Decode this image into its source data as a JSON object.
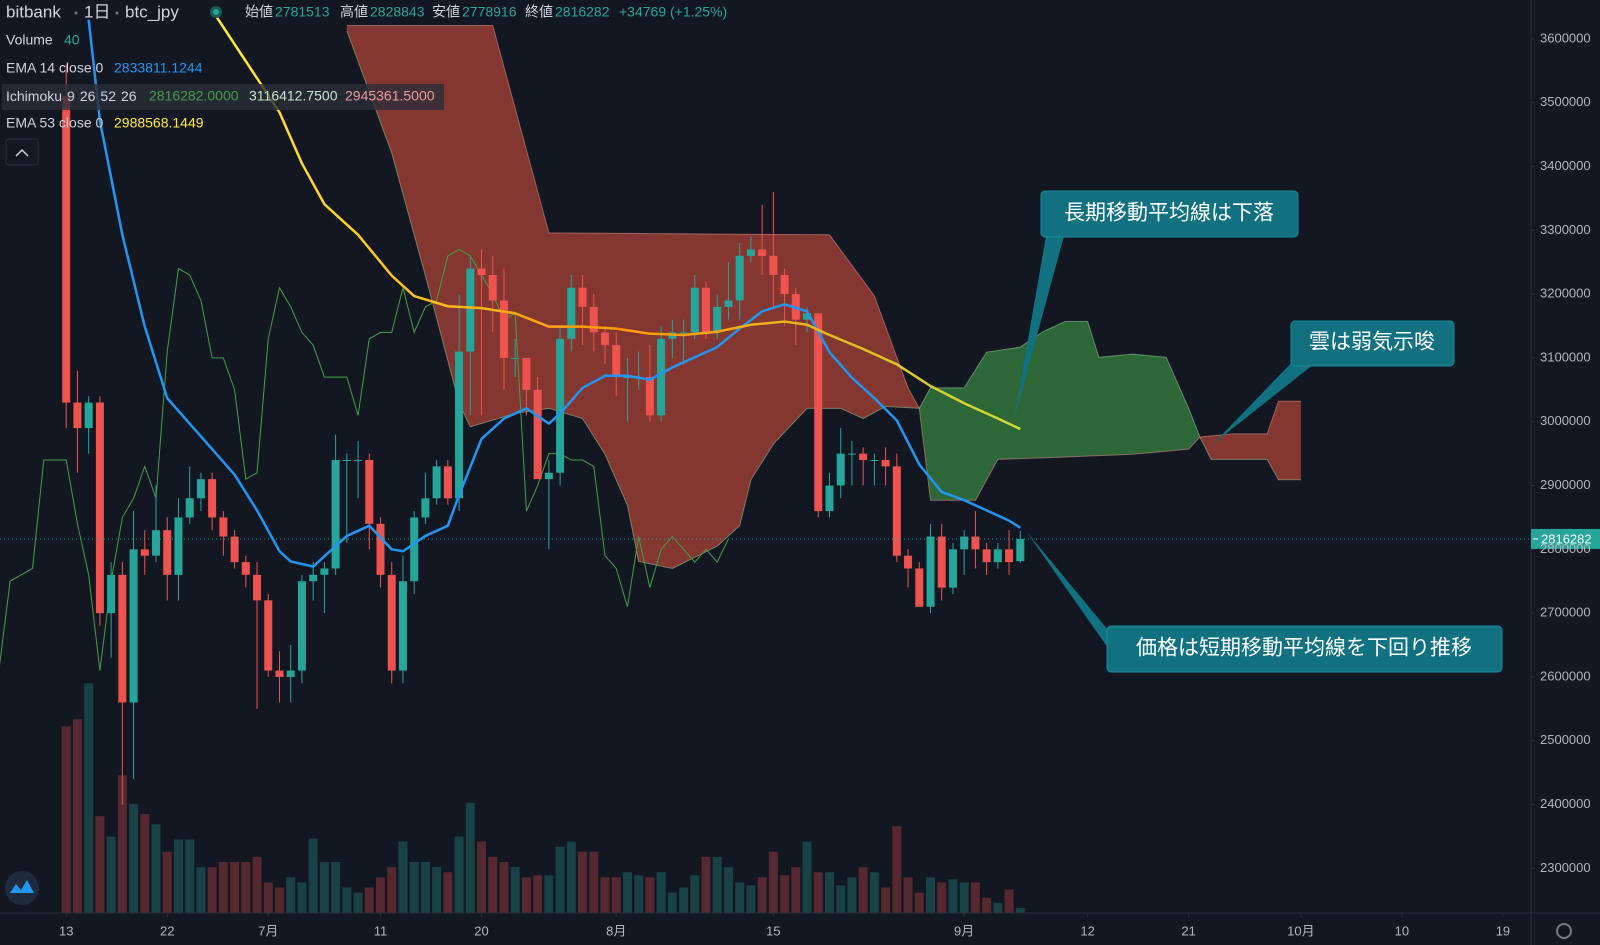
{
  "chart_data": {
    "type": "candlestick",
    "exchange": "bitbank",
    "interval": "1日",
    "symbol": "btc_jpy",
    "ohlc_labels": [
      "始値",
      "高値",
      "安値",
      "終値"
    ],
    "change_label": "+34769 (+1.25%)",
    "up_color": "#26a69a",
    "down_color": "#ef5350",
    "x": [
      0,
      1,
      2,
      3,
      4,
      5,
      6,
      7,
      8,
      9,
      10,
      11,
      12,
      13,
      14,
      15,
      16,
      17,
      18,
      19,
      20,
      21,
      22,
      23,
      24,
      25,
      26,
      27,
      28,
      29,
      30,
      31,
      32,
      33,
      34,
      35,
      36,
      37,
      38,
      39,
      40,
      41,
      42,
      43,
      44,
      45,
      46,
      47,
      48,
      49,
      50,
      51,
      52,
      53,
      54,
      55,
      56,
      57,
      58,
      59,
      60,
      61,
      62,
      63,
      64,
      65,
      66,
      67,
      68,
      69,
      70,
      71,
      72,
      73,
      74,
      75,
      76,
      77,
      78,
      79,
      80,
      81,
      82,
      83,
      84,
      85
    ],
    "open": [
      3510000,
      3030000,
      2990000,
      3030000,
      2700000,
      2760000,
      2560000,
      2800000,
      2790000,
      2830000,
      2760000,
      2850000,
      2880000,
      2910000,
      2850000,
      2820000,
      2780000,
      2760000,
      2720000,
      2610000,
      2600000,
      2610000,
      2750000,
      2760000,
      2770000,
      2940000,
      2940000,
      2940000,
      2840000,
      2760000,
      2610000,
      2750000,
      2850000,
      2880000,
      2930000,
      2880000,
      3110000,
      3240000,
      3230000,
      3190000,
      3100000,
      3100000,
      3050000,
      2910000,
      2920000,
      3130000,
      3210000,
      3180000,
      3140000,
      3120000,
      3070000,
      3070000,
      3070000,
      3010000,
      3130000,
      3140000,
      3140000,
      3210000,
      3140000,
      3180000,
      3190000,
      3260000,
      3270000,
      3260000,
      3230000,
      3200000,
      3160000,
      3170000,
      2860000,
      2900000,
      2950000,
      2950000,
      2940000,
      2940000,
      2930000,
      2790000,
      2770000,
      2710000,
      2820000,
      2740000,
      2800000,
      2820000,
      2800000,
      2780000,
      2800000,
      2781513
    ],
    "high": [
      3560000,
      3080000,
      3040000,
      3040000,
      2780000,
      2780000,
      2860000,
      2830000,
      2900000,
      2850000,
      2880000,
      2930000,
      2920000,
      2920000,
      2860000,
      2830000,
      2790000,
      2780000,
      2730000,
      2640000,
      2650000,
      2760000,
      2780000,
      2780000,
      2980000,
      2950000,
      2970000,
      2950000,
      2850000,
      2780000,
      2790000,
      2860000,
      2920000,
      2940000,
      2940000,
      3200000,
      3260000,
      3270000,
      3260000,
      3240000,
      3130000,
      3100000,
      3070000,
      2940000,
      3150000,
      3230000,
      3230000,
      3200000,
      3150000,
      3140000,
      3100000,
      3110000,
      3120000,
      3150000,
      3160000,
      3160000,
      3230000,
      3220000,
      3200000,
      3250000,
      3280000,
      3290000,
      3340000,
      3360000,
      3240000,
      3210000,
      3180000,
      3170000,
      2920000,
      2990000,
      2970000,
      2960000,
      2950000,
      2960000,
      2950000,
      2800000,
      2780000,
      2840000,
      2840000,
      2810000,
      2830000,
      2860000,
      2810000,
      2810000,
      2830000,
      2828843
    ],
    "low": [
      2990000,
      2920000,
      2950000,
      2680000,
      2630000,
      2400000,
      2440000,
      2760000,
      2780000,
      2720000,
      2720000,
      2840000,
      2860000,
      2830000,
      2790000,
      2770000,
      2740000,
      2550000,
      2600000,
      2560000,
      2560000,
      2590000,
      2720000,
      2700000,
      2760000,
      2810000,
      2880000,
      2800000,
      2740000,
      2590000,
      2590000,
      2730000,
      2840000,
      2870000,
      2870000,
      2860000,
      3010000,
      3010000,
      3140000,
      3050000,
      3070000,
      3010000,
      2910000,
      2800000,
      2900000,
      3110000,
      3120000,
      3110000,
      3090000,
      3040000,
      3000000,
      3050000,
      3000000,
      3000000,
      3100000,
      3090000,
      3130000,
      3130000,
      3130000,
      3160000,
      3160000,
      3250000,
      3230000,
      3180000,
      3150000,
      3120000,
      3140000,
      2850000,
      2850000,
      2880000,
      2900000,
      2900000,
      2900000,
      2900000,
      2780000,
      2740000,
      2710000,
      2700000,
      2720000,
      2730000,
      2760000,
      2770000,
      2760000,
      2770000,
      2760000,
      2778916
    ],
    "close": [
      3030000,
      2990000,
      3030000,
      2700000,
      2760000,
      2560000,
      2800000,
      2790000,
      2830000,
      2760000,
      2850000,
      2880000,
      2910000,
      2850000,
      2820000,
      2780000,
      2760000,
      2720000,
      2610000,
      2600000,
      2610000,
      2750000,
      2760000,
      2770000,
      2940000,
      2940000,
      2940000,
      2840000,
      2760000,
      2610000,
      2750000,
      2850000,
      2880000,
      2930000,
      2880000,
      3110000,
      3240000,
      3230000,
      3190000,
      3100000,
      3100000,
      3050000,
      2910000,
      2920000,
      3130000,
      3210000,
      3180000,
      3140000,
      3120000,
      3070000,
      3070000,
      3070000,
      3010000,
      3130000,
      3140000,
      3140000,
      3210000,
      3140000,
      3180000,
      3190000,
      3260000,
      3270000,
      3260000,
      3230000,
      3200000,
      3160000,
      3170000,
      2860000,
      2900000,
      2950000,
      2950000,
      2940000,
      2940000,
      2930000,
      2790000,
      2770000,
      2710000,
      2820000,
      2740000,
      2800000,
      2820000,
      2800000,
      2780000,
      2800000,
      2780000,
      2816282
    ],
    "volume": {
      "name": "Volume",
      "ylim": [
        0,
        7160
      ],
      "opacity": 0.3,
      "values": [
        1464,
        1520,
        1800,
        760,
        600,
        1080,
        856,
        776,
        696,
        480,
        576,
        576,
        360,
        360,
        400,
        400,
        400,
        440,
        240,
        200,
        280,
        240,
        584,
        400,
        400,
        200,
        160,
        200,
        280,
        360,
        560,
        400,
        400,
        360,
        320,
        600,
        864,
        560,
        440,
        400,
        360,
        280,
        296,
        296,
        520,
        560,
        480,
        480,
        280,
        280,
        320,
        296,
        280,
        320,
        160,
        200,
        296,
        440,
        440,
        360,
        240,
        216,
        280,
        480,
        296,
        360,
        560,
        320,
        320,
        216,
        280,
        360,
        320,
        200,
        680,
        280,
        160,
        280,
        240,
        264,
        240,
        240,
        120,
        80,
        184,
        40
      ]
    },
    "ema": [
      {
        "name": "EMA 14 close 0",
        "color": "#2196f3",
        "x": [
          2,
          3,
          5,
          7,
          9,
          11,
          13,
          15,
          17,
          19,
          20,
          22,
          23,
          25,
          27,
          29,
          30,
          32,
          34,
          35,
          37,
          39,
          41,
          43,
          44,
          46,
          48,
          50,
          52,
          54,
          56,
          58,
          60,
          62,
          64,
          66,
          68,
          70,
          72,
          74,
          76,
          78,
          80,
          82,
          84,
          85
        ],
        "values": [
          3630000,
          3472000,
          3293000,
          3149000,
          3037000,
          2997000,
          2957000,
          2917000,
          2861000,
          2797000,
          2781000,
          2773000,
          2789000,
          2821000,
          2837000,
          2800000,
          2797000,
          2821000,
          2837000,
          2885000,
          2973000,
          3005000,
          3021000,
          2997000,
          3013000,
          3053000,
          3072000,
          3072000,
          3066000,
          3085000,
          3101000,
          3117000,
          3146000,
          3173000,
          3184000,
          3173000,
          3109000,
          3069000,
          3037000,
          3002000,
          2933000,
          2890000,
          2877000,
          2861000,
          2845000,
          2833811.1244
        ]
      },
      {
        "name": "EMA 53 close 0",
        "color": "#ffeb3b",
        "gradient": [
          "#ffeb3b",
          "#ff9800",
          "#cddc39"
        ],
        "x": [
          13,
          16,
          19,
          21,
          23,
          26,
          29,
          31,
          34,
          37,
          40,
          43,
          46,
          49,
          52,
          55,
          58,
          61,
          64,
          66,
          68,
          71,
          74,
          77,
          80,
          83,
          85
        ],
        "values": [
          3645000,
          3565000,
          3485000,
          3405000,
          3341000,
          3293000,
          3229000,
          3197000,
          3181000,
          3178000,
          3170000,
          3149000,
          3149000,
          3146000,
          3138000,
          3136000,
          3141000,
          3152000,
          3157000,
          3152000,
          3136000,
          3114000,
          3090000,
          3056000,
          3029000,
          3005000,
          2988568.1449
        ]
      }
    ],
    "ichimoku": {
      "name": "Ichimoku",
      "params": [
        9,
        26,
        52,
        26
      ],
      "legend_values": [
        "2816282.0000",
        "3116412.7500",
        "2945361.5000"
      ],
      "lagging_color": "#43a047",
      "bull_fill": "#2e6b3a",
      "bear_fill": "#8a3832",
      "span_a": {
        "color": "#a5d6a7",
        "x": [
          25,
          29,
          32,
          35,
          36,
          40,
          43,
          46,
          48,
          50,
          51,
          54,
          58,
          60,
          61,
          63,
          66,
          69,
          71,
          73,
          76,
          77,
          80,
          82,
          85,
          87,
          89,
          91,
          92,
          95,
          98,
          100,
          101,
          102,
          107,
          108,
          110
        ],
        "values": [
          3613000,
          3421000,
          3229000,
          3029000,
          2992000,
          3013000,
          3021000,
          3005000,
          2949000,
          2869000,
          2781000,
          2770000,
          2805000,
          2837000,
          2909000,
          2965000,
          3021000,
          3021000,
          3005000,
          3024000,
          3021000,
          3053000,
          3053000,
          3109000,
          3117000,
          3141000,
          3157000,
          3157000,
          3101000,
          3106000,
          3101000,
          3021000,
          2976000,
          2941000,
          2941000,
          2909000,
          2909000
        ]
      },
      "span_b": {
        "color": "#ef9a9a",
        "x": [
          25,
          38,
          43,
          68,
          72,
          75,
          76,
          77,
          81,
          83,
          88,
          95,
          100,
          101,
          104,
          107,
          108,
          110
        ],
        "values": [
          3621000,
          3621000,
          3296000,
          3293000,
          3197000,
          3053000,
          3021000,
          2877000,
          2877000,
          2941000,
          2944000,
          2949000,
          2957000,
          2976000,
          2981000,
          2981000,
          3032000,
          3032000
        ]
      }
    },
    "xlim": [
      -5.9,
      130.5
    ],
    "xticks": [
      {
        "value": 0,
        "label": "13"
      },
      {
        "value": 9,
        "label": "22"
      },
      {
        "value": 18,
        "label": "7月"
      },
      {
        "value": 28,
        "label": "11"
      },
      {
        "value": 37,
        "label": "20"
      },
      {
        "value": 49,
        "label": "8月"
      },
      {
        "value": 63,
        "label": "15"
      },
      {
        "value": 80,
        "label": "9月"
      },
      {
        "value": 91,
        "label": "12"
      },
      {
        "value": 100,
        "label": "21"
      },
      {
        "value": 110,
        "label": "10月"
      },
      {
        "value": 119,
        "label": "10"
      },
      {
        "value": 128,
        "label": "19"
      }
    ],
    "ylim": [
      2230000,
      3661000
    ],
    "yticks": [
      2300000,
      2400000,
      2500000,
      2600000,
      2700000,
      2800000,
      2900000,
      3000000,
      3100000,
      3200000,
      3300000,
      3400000,
      3500000,
      3600000
    ],
    "grid": false,
    "annotations": [
      "長期移動平均線は下落",
      "雲は弱気示唆",
      "価格は短期移動平均線を下回り推移"
    ]
  }
}
